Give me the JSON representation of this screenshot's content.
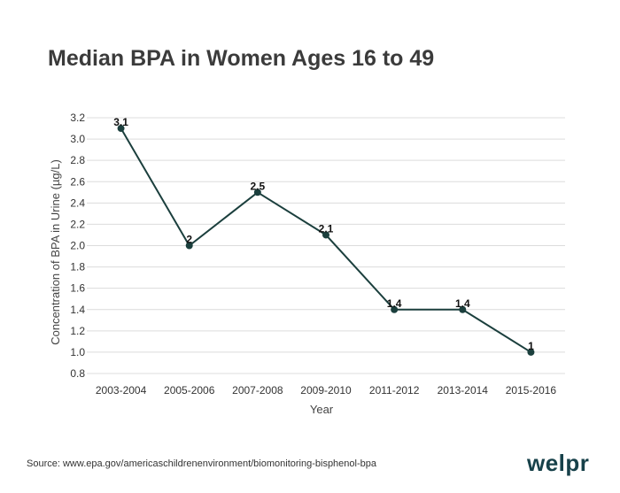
{
  "chart_data": {
    "type": "line",
    "title": "Median BPA in Women Ages 16 to 49",
    "xlabel": "Year",
    "ylabel": "Concentration of BPA in Urine (µg/L)",
    "categories": [
      "2003-2004",
      "2005-2006",
      "2007-2008",
      "2009-2010",
      "2011-2012",
      "2013-2014",
      "2015-2016"
    ],
    "values": [
      3.1,
      2,
      2.5,
      2.1,
      1.4,
      1.4,
      1
    ],
    "data_labels": [
      "3.1",
      "2",
      "2.5",
      "2.1",
      "1.4",
      "1.4",
      "1"
    ],
    "ylim": [
      0.8,
      3.2
    ],
    "yticks": [
      "3.2",
      "3.0",
      "2.8",
      "2.6",
      "2.4",
      "2.2",
      "2.0",
      "1.8",
      "1.6",
      "1.4",
      "1.2",
      "1.0",
      "0.8"
    ],
    "grid": true,
    "line_color": "#1b3f3d"
  },
  "footer": {
    "source": "Source: www.epa.gov/americaschildrenenvironment/biomonitoring-bisphenol-bpa",
    "logo": "welpr"
  }
}
